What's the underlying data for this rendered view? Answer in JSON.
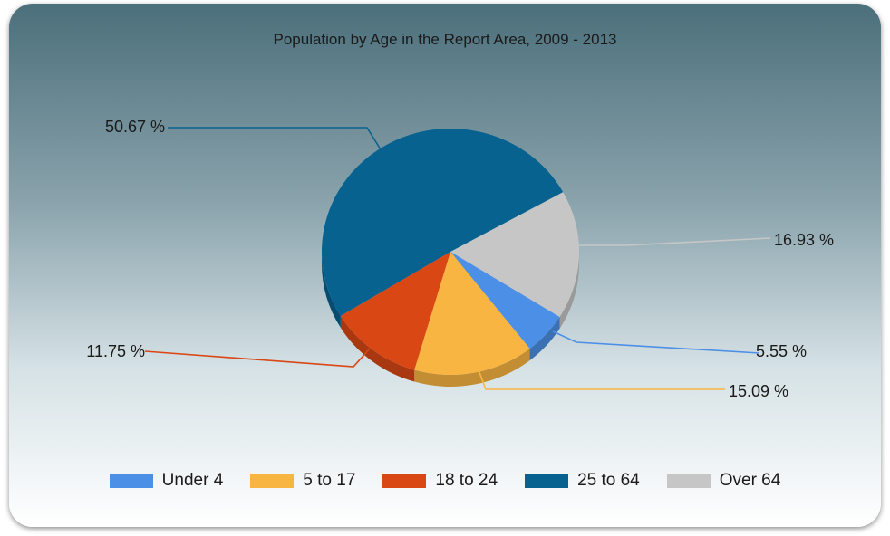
{
  "chart_data": {
    "type": "pie",
    "title": "Population by Age in the Report Area, 2009 - 2013",
    "categories": [
      "Under 4",
      "5 to 17",
      "18 to 24",
      "25 to 64",
      "Over 64"
    ],
    "values": [
      5.55,
      15.09,
      11.75,
      50.67,
      16.93
    ],
    "labels": [
      "5.55 %",
      "15.09 %",
      "11.75 %",
      "50.67 %",
      "16.93 %"
    ],
    "colors": [
      "#4c8fe6",
      "#f9b542",
      "#d94714",
      "#07628f",
      "#c6c6c6"
    ],
    "legend_position": "bottom",
    "style": "3d"
  }
}
